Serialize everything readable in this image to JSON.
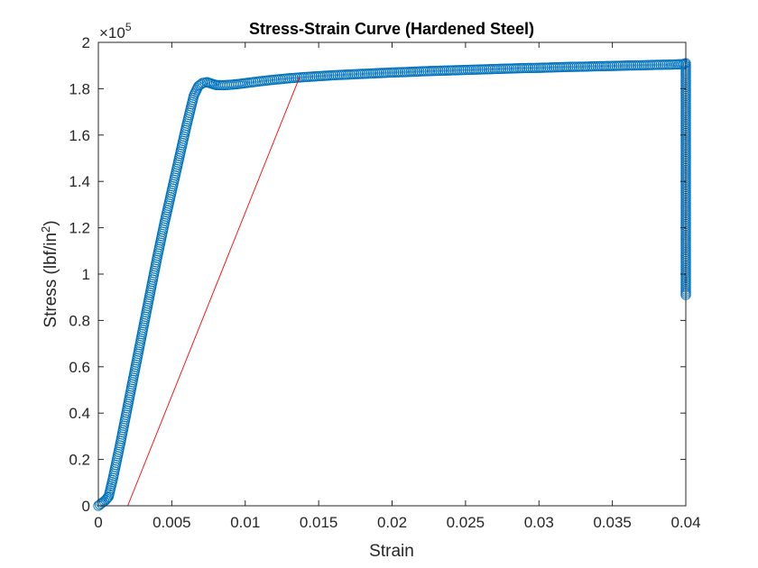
{
  "chart_data": {
    "type": "scatter",
    "title": "Stress-Strain Curve (Hardened Steel)",
    "xlabel": "Strain",
    "ylabel": "Stress (lbf/in²)",
    "ylabel_parts": {
      "main": "Stress (lbf/in",
      "sup": "2",
      "end": ")"
    },
    "y_exponent": {
      "base": "×10",
      "power": "5"
    },
    "xlim": [
      0,
      0.04
    ],
    "ylim": [
      0,
      200000
    ],
    "x_ticks": [
      0,
      0.005,
      0.01,
      0.015,
      0.02,
      0.025,
      0.03,
      0.035,
      0.04
    ],
    "x_tick_labels": [
      "0",
      "0.005",
      "0.01",
      "0.015",
      "0.02",
      "0.025",
      "0.03",
      "0.035",
      "0.04"
    ],
    "y_ticks": [
      0,
      20000,
      40000,
      60000,
      80000,
      100000,
      120000,
      140000,
      160000,
      180000,
      200000
    ],
    "y_tick_labels": [
      "0",
      "0.2",
      "0.4",
      "0.6",
      "0.8",
      "1",
      "1.2",
      "1.4",
      "1.6",
      "1.8",
      "2"
    ],
    "grid": false,
    "legend": "none",
    "series": [
      {
        "kind": "markers",
        "marker": "circle-open",
        "color": "#0072BD",
        "points": [
          [
            0.0,
            0
          ],
          [
            0.0002,
            1000
          ],
          [
            0.0005,
            2500
          ],
          [
            0.0007,
            4000
          ],
          [
            0.001,
            12000
          ],
          [
            0.0015,
            27000
          ],
          [
            0.002,
            43000
          ],
          [
            0.0025,
            59000
          ],
          [
            0.003,
            75000
          ],
          [
            0.0035,
            91000
          ],
          [
            0.004,
            107000
          ],
          [
            0.0045,
            122000
          ],
          [
            0.005,
            136000
          ],
          [
            0.0055,
            150000
          ],
          [
            0.006,
            164000
          ],
          [
            0.0065,
            177000
          ],
          [
            0.0068,
            181000
          ],
          [
            0.0071,
            182500
          ],
          [
            0.0074,
            182800
          ],
          [
            0.0077,
            182200
          ],
          [
            0.008,
            181600
          ],
          [
            0.0085,
            181500
          ],
          [
            0.009,
            181700
          ],
          [
            0.0095,
            182000
          ],
          [
            0.01,
            182400
          ],
          [
            0.011,
            183200
          ],
          [
            0.012,
            183900
          ],
          [
            0.013,
            184500
          ],
          [
            0.014,
            185000
          ],
          [
            0.015,
            185400
          ],
          [
            0.016,
            185800
          ],
          [
            0.017,
            186100
          ],
          [
            0.018,
            186400
          ],
          [
            0.019,
            186700
          ],
          [
            0.02,
            187000
          ],
          [
            0.021,
            187200
          ],
          [
            0.022,
            187500
          ],
          [
            0.023,
            187700
          ],
          [
            0.024,
            187900
          ],
          [
            0.025,
            188100
          ],
          [
            0.026,
            188300
          ],
          [
            0.027,
            188500
          ],
          [
            0.028,
            188700
          ],
          [
            0.029,
            188900
          ],
          [
            0.03,
            189000
          ],
          [
            0.031,
            189200
          ],
          [
            0.032,
            189400
          ],
          [
            0.033,
            189500
          ],
          [
            0.034,
            189700
          ],
          [
            0.035,
            189800
          ],
          [
            0.036,
            190000
          ],
          [
            0.037,
            190100
          ],
          [
            0.038,
            190300
          ],
          [
            0.039,
            190400
          ],
          [
            0.0398,
            190600
          ],
          [
            0.04,
            191000
          ],
          [
            0.04,
            188000
          ],
          [
            0.04,
            184000
          ],
          [
            0.04,
            180000
          ],
          [
            0.04,
            176000
          ],
          [
            0.04,
            172000
          ],
          [
            0.04,
            168000
          ],
          [
            0.04,
            164000
          ],
          [
            0.04,
            160000
          ],
          [
            0.04,
            156000
          ],
          [
            0.04,
            152000
          ],
          [
            0.04,
            148000
          ],
          [
            0.04,
            144000
          ],
          [
            0.04,
            140000
          ],
          [
            0.04,
            136000
          ],
          [
            0.04,
            132000
          ],
          [
            0.04,
            128000
          ],
          [
            0.04,
            124000
          ],
          [
            0.04,
            120000
          ],
          [
            0.04,
            116000
          ],
          [
            0.04,
            112000
          ],
          [
            0.04,
            108000
          ],
          [
            0.04,
            104000
          ],
          [
            0.04,
            100000
          ],
          [
            0.04,
            95000
          ],
          [
            0.04,
            91000
          ]
        ]
      },
      {
        "kind": "line",
        "color": "#FF0000",
        "points": [
          [
            0.002,
            0
          ],
          [
            0.0137,
            185000
          ]
        ]
      }
    ]
  }
}
